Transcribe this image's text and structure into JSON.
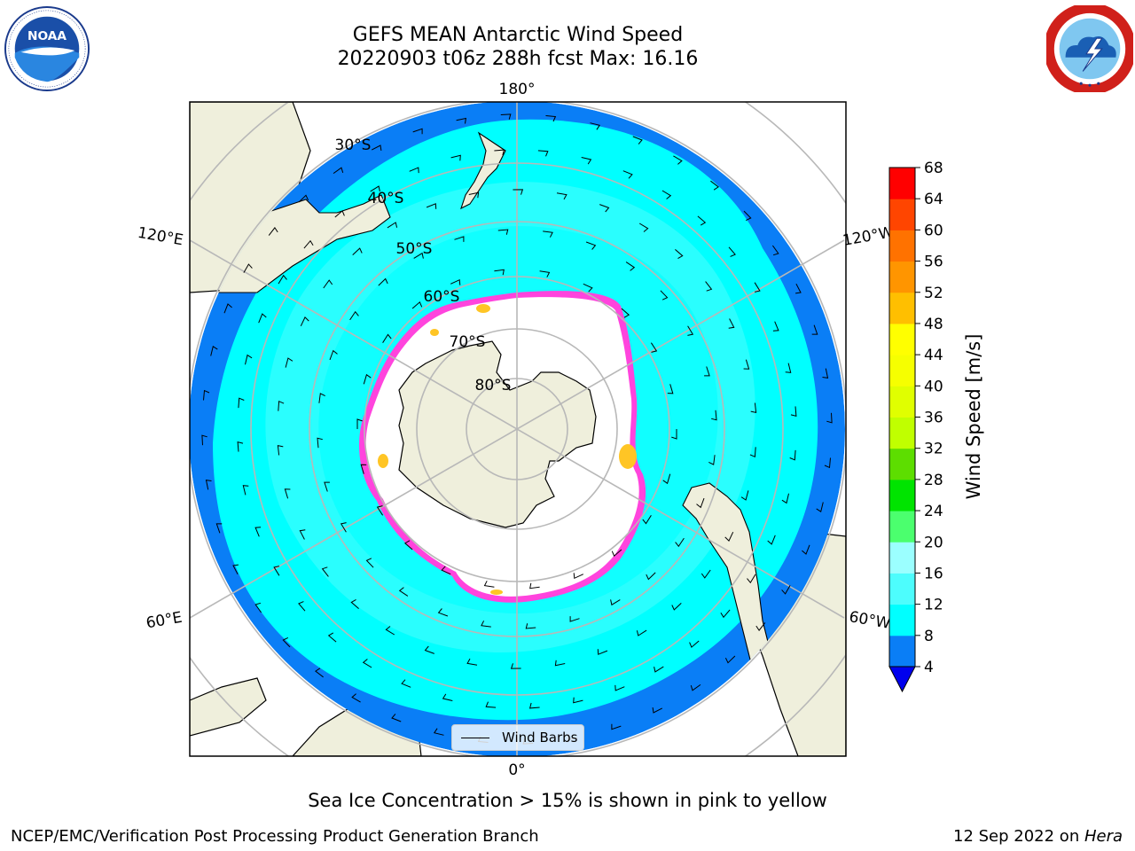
{
  "title": {
    "line1": "GEFS MEAN Antarctic Wind Speed",
    "line2": "20220903 t06z 288h fcst   Max: 16.16"
  },
  "logos": {
    "noaa": {
      "text": "NOAA",
      "ring_text": "NATIONAL OCEANIC AND ATMOSPHERIC ADMINISTRATION · U.S. DEPARTMENT OF COMMERCE"
    },
    "nws": {
      "ring_text": "NATIONAL WEATHER SERVICE"
    }
  },
  "map": {
    "projection": "south-polar-stereographic",
    "longitude_labels": {
      "top": "180°",
      "bottom": "0°",
      "upper_left": "120°E",
      "upper_right": "120°W",
      "lower_left": "60°E",
      "lower_right": "60°W"
    },
    "latitude_labels": [
      "30°S",
      "40°S",
      "50°S",
      "60°S",
      "70°S",
      "80°S"
    ],
    "colors": {
      "land": "#efefdc",
      "ocean_4_8": "#0a7ef6",
      "ocean_8_12": "#00ffff",
      "ocean_12_16": "#4dfdfd",
      "ocean_16_20": "#9bffff",
      "sea_ice_edge": "#ff44dd",
      "sea_ice_high": "#ffc525",
      "gridline": "#b8b8b8"
    }
  },
  "colorbar": {
    "label": "Wind Speed [m/s]",
    "ticks": [
      "68",
      "64",
      "60",
      "56",
      "52",
      "48",
      "44",
      "40",
      "36",
      "32",
      "28",
      "24",
      "20",
      "16",
      "12",
      "8",
      "4"
    ],
    "bins_low_to_high": [
      "#0a7ef6",
      "#00ffff",
      "#4dfdfd",
      "#9bffff",
      "#4bff6e",
      "#00e400",
      "#5dde00",
      "#c0ff00",
      "#e0ff00",
      "#f6ff00",
      "#ffff00",
      "#ffbf00",
      "#ff9500",
      "#ff7200",
      "#ff4500",
      "#ff0000"
    ],
    "underflow_color": "#0000ee"
  },
  "legend": {
    "label": "Wind Barbs"
  },
  "sea_ice_note": "Sea Ice Concentration > 15% is shown in pink to yellow",
  "footer": {
    "left": "NCEP/EMC/Verification Post Processing Product Generation Branch",
    "date": "12 Sep 2022 on ",
    "host": "Hera"
  }
}
